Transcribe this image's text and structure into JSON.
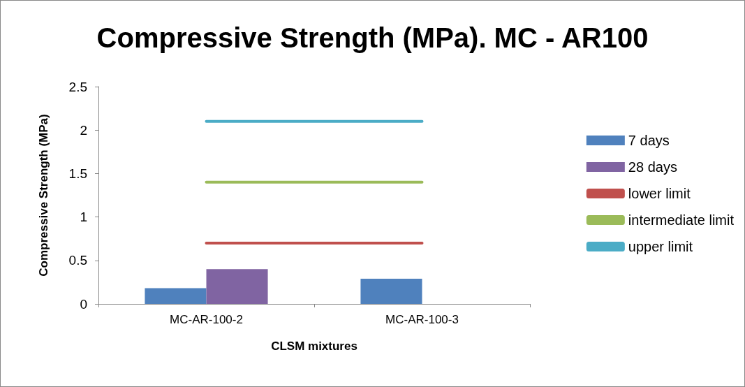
{
  "chart_data": {
    "type": "bar",
    "title": "Compressive Strength (MPa). MC - AR100",
    "xlabel": "CLSM mixtures",
    "ylabel": "Compressive Strength (MPa)",
    "categories": [
      "MC-AR-100-2",
      "MC-AR-100-3"
    ],
    "series": [
      {
        "name": "7 days",
        "color": "#4f81bd",
        "values": [
          0.18,
          0.29
        ]
      },
      {
        "name": "28 days",
        "color": "#8064a2",
        "values": [
          0.4,
          null
        ]
      },
      {
        "name": "lower limit",
        "type": "line",
        "color": "#c0504d",
        "values": [
          0.7,
          0.7
        ]
      },
      {
        "name": "intermediate limit",
        "type": "line",
        "color": "#9bbb59",
        "values": [
          1.4,
          1.4
        ]
      },
      {
        "name": "upper limit",
        "type": "line",
        "color": "#4bacc6",
        "values": [
          2.1,
          2.1
        ]
      }
    ],
    "ylim": [
      0,
      2.5
    ],
    "yticks": [
      0,
      0.5,
      1,
      1.5,
      2,
      2.5
    ],
    "grid": false,
    "legend": "right",
    "marker": "none",
    "line_style": "solid"
  }
}
